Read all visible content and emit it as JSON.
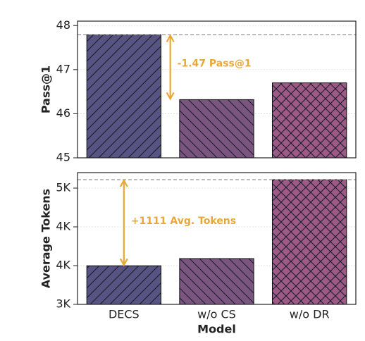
{
  "chart_data": [
    {
      "type": "bar",
      "ylabel": "Pass@1",
      "values": [
        47.79,
        46.32,
        46.7
      ],
      "colors": [
        "#575382",
        "#7a5580",
        "#9c5a85"
      ],
      "hatches": [
        "/",
        "\\",
        "x"
      ],
      "ylim": [
        45,
        48.1
      ],
      "yticks": [
        45,
        46,
        47,
        48
      ],
      "grid": true,
      "annotation": {
        "text": "-1.47 Pass@1",
        "between": [
          "DECS",
          "w/o CS"
        ]
      }
    },
    {
      "type": "bar",
      "ylabel": "Average Tokens",
      "xlabel": "Model",
      "categories": [
        "DECS",
        "w/o CS",
        "w/o DR"
      ],
      "values": [
        3498,
        3591,
        4609
      ],
      "colors": [
        "#575382",
        "#7a5580",
        "#9c5a85"
      ],
      "hatches": [
        "/",
        "\\",
        "x"
      ],
      "ylim": [
        3000,
        4700
      ],
      "yticks": [
        {
          "value": 3000,
          "label": "3K"
        },
        {
          "value": 3500,
          "label": "4K"
        },
        {
          "value": 4000,
          "label": "4K"
        },
        {
          "value": 4500,
          "label": "5K"
        }
      ],
      "grid": true,
      "annotation": {
        "text": "+1111 Avg. Tokens",
        "between": [
          "DECS",
          "w/o DR"
        ]
      }
    }
  ]
}
